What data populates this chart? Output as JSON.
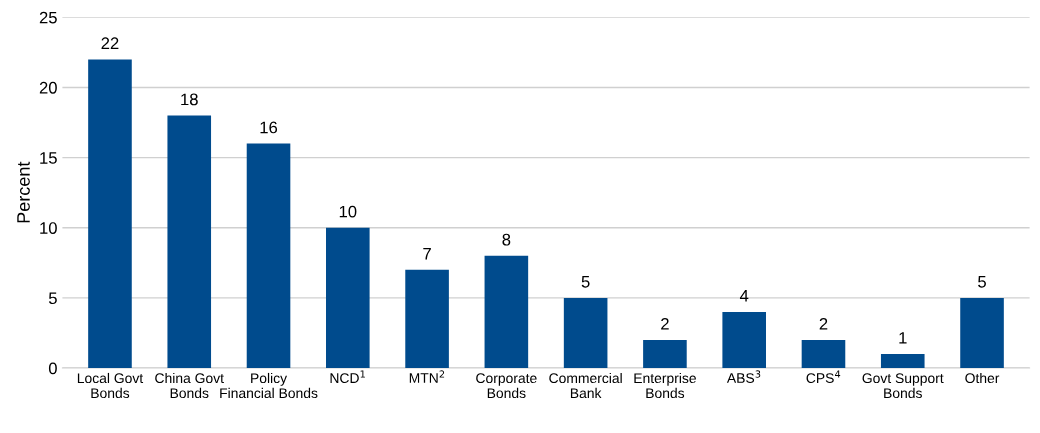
{
  "chart_data": {
    "type": "bar",
    "ylabel": "Percent",
    "categories": [
      "Local Govt\nBonds",
      "China Govt\nBonds",
      "Policy\nFinancial Bonds",
      "NCD$^{1}$",
      "MTN$^{2}$",
      "Corporate\nBonds",
      "Commercial\nBank",
      "Enterprise\nBonds",
      "ABS$^{3}$",
      "CPS$^{4}$",
      "Govt Support\nBonds",
      "Other"
    ],
    "values": [
      22,
      18,
      16,
      10,
      7,
      8,
      5,
      2,
      4,
      2,
      1,
      5
    ],
    "color": "#004b8d",
    "ylim": [
      0,
      25
    ],
    "yticks": [
      0,
      5,
      10,
      15,
      20,
      25
    ],
    "grid": "y",
    "data_labels": true,
    "legend": false
  }
}
